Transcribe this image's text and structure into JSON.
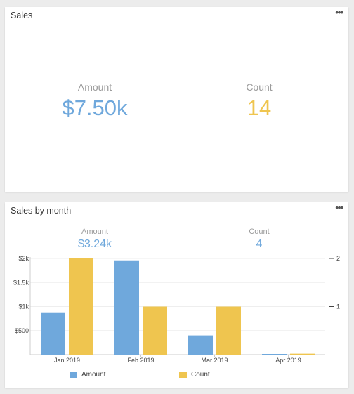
{
  "colors": {
    "amount": "#6fa8dc",
    "count": "#efc54f"
  },
  "sales_card": {
    "title": "Sales",
    "menu_icon": "more-horizontal-icon",
    "amount_label": "Amount",
    "amount_value": "$7.50k",
    "count_label": "Count",
    "count_value": "14"
  },
  "monthly_card": {
    "title": "Sales by month",
    "menu_icon": "more-horizontal-icon",
    "amount_label": "Amount",
    "amount_value": "$3.24k",
    "count_label": "Count",
    "count_value": "4"
  },
  "chart_data": {
    "type": "bar",
    "categories": [
      "Jan 2019",
      "Feb 2019",
      "Mar 2019",
      "Apr 2019"
    ],
    "series": [
      {
        "name": "Amount",
        "axis": "left",
        "values": [
          880,
          1960,
          400,
          10
        ]
      },
      {
        "name": "Count",
        "axis": "right",
        "values": [
          2,
          1,
          1,
          0.02
        ]
      }
    ],
    "y_left": {
      "ticks": [
        "$500",
        "$1k",
        "$1.5k",
        "$2k"
      ],
      "tick_values": [
        500,
        1000,
        1500,
        2000
      ],
      "ylim": [
        0,
        2000
      ]
    },
    "y_right": {
      "ticks": [
        "1",
        "2"
      ],
      "tick_values": [
        1,
        2
      ],
      "ylim": [
        0,
        2
      ]
    },
    "grid": true,
    "legend_position": "bottom"
  }
}
